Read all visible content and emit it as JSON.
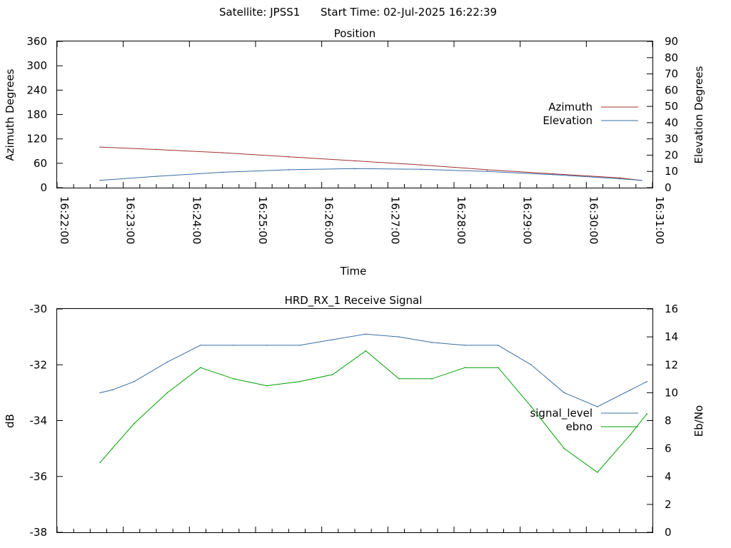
{
  "header": {
    "satellite_label": "Satellite: JPSS1",
    "start_time_label": "Start Time: 02-Jul-2025 16:22:39"
  },
  "chart_data": [
    {
      "id": "position",
      "type": "line",
      "title": "Position",
      "xlabel": "Time",
      "ylabel": "Azimuth Degrees",
      "y2label": "Elevation Degrees",
      "xlim": [
        "16:22:00",
        "16:31:00"
      ],
      "x_ticks": [
        "16:22:00",
        "16:23:00",
        "16:24:00",
        "16:25:00",
        "16:26:00",
        "16:27:00",
        "16:28:00",
        "16:29:00",
        "16:30:00",
        "16:31:00"
      ],
      "ylim": [
        0,
        360
      ],
      "y_ticks": [
        0,
        60,
        120,
        180,
        240,
        300,
        360
      ],
      "y2lim": [
        0,
        90
      ],
      "y2_ticks": [
        0,
        10,
        20,
        30,
        40,
        50,
        60,
        70,
        80,
        90
      ],
      "legend_position": "right",
      "series": [
        {
          "name": "Azimuth",
          "axis": "left",
          "color": "#a03030",
          "x": [
            "16:22:39",
            "16:23:30",
            "16:24:30",
            "16:25:30",
            "16:26:30",
            "16:27:30",
            "16:28:30",
            "16:29:30",
            "16:30:30",
            "16:30:50"
          ],
          "values": [
            100,
            94,
            86,
            76,
            66,
            56,
            44,
            34,
            24,
            18
          ]
        },
        {
          "name": "Elevation",
          "axis": "right",
          "color": "#3a6ea5",
          "x": [
            "16:22:39",
            "16:23:30",
            "16:24:30",
            "16:25:30",
            "16:26:30",
            "16:27:30",
            "16:28:30",
            "16:29:30",
            "16:30:30",
            "16:30:50"
          ],
          "values": [
            4.5,
            7,
            9.5,
            11,
            11.7,
            11.3,
            10,
            8,
            5.5,
            4.5
          ]
        }
      ]
    },
    {
      "id": "receive_signal",
      "type": "line",
      "title": "HRD_RX_1 Receive Signal",
      "ylabel": "dB",
      "y2label": "Eb/No",
      "xlim": [
        "16:22:00",
        "16:31:00"
      ],
      "ylim": [
        -38,
        -30
      ],
      "y_ticks": [
        -38,
        -36,
        -34,
        -32,
        -30
      ],
      "y2lim": [
        0,
        16
      ],
      "y2_ticks": [
        0,
        2,
        4,
        6,
        8,
        10,
        12,
        14,
        16
      ],
      "legend_position": "right",
      "series": [
        {
          "name": "signal_level",
          "axis": "left",
          "color": "#3a6ea5",
          "x": [
            "16:22:39",
            "16:22:50",
            "16:23:10",
            "16:23:40",
            "16:24:10",
            "16:24:40",
            "16:25:10",
            "16:25:40",
            "16:26:10",
            "16:26:40",
            "16:27:10",
            "16:27:40",
            "16:28:10",
            "16:28:40",
            "16:29:10",
            "16:29:40",
            "16:30:10",
            "16:30:40",
            "16:30:55"
          ],
          "values": [
            -33.0,
            -32.9,
            -32.6,
            -31.9,
            -31.3,
            -31.3,
            -31.3,
            -31.3,
            -31.1,
            -30.9,
            -31.0,
            -31.2,
            -31.3,
            -31.3,
            -32.0,
            -33.0,
            -33.5,
            -32.9,
            -32.6
          ]
        },
        {
          "name": "ebno",
          "axis": "right",
          "color": "#00a000",
          "x": [
            "16:22:39",
            "16:22:50",
            "16:23:10",
            "16:23:40",
            "16:24:10",
            "16:24:40",
            "16:25:10",
            "16:25:40",
            "16:26:10",
            "16:26:40",
            "16:27:10",
            "16:27:40",
            "16:28:10",
            "16:28:40",
            "16:29:10",
            "16:29:40",
            "16:30:10",
            "16:30:40",
            "16:30:55"
          ],
          "values": [
            5.0,
            6.0,
            7.8,
            10.0,
            11.8,
            11.0,
            10.5,
            10.8,
            11.3,
            13.0,
            11.0,
            11.0,
            11.8,
            11.8,
            9.0,
            6.0,
            4.3,
            7.0,
            8.5
          ]
        }
      ]
    }
  ]
}
